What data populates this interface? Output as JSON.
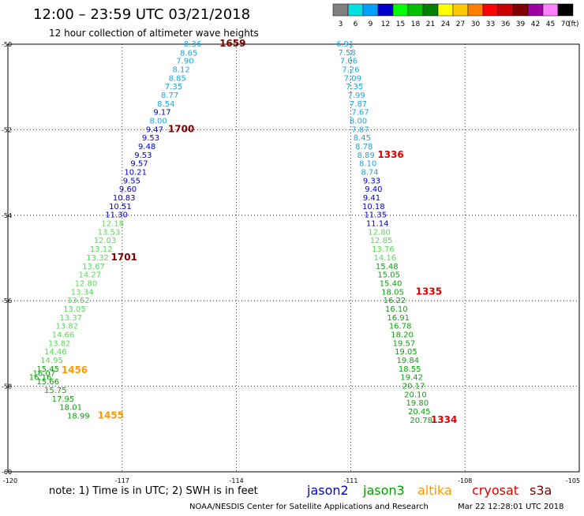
{
  "title": "12:00 – 23:59 UTC 03/21/2018",
  "subtitle": "12 hour collection of altimeter wave heights",
  "legend": {
    "labels": [
      "3",
      "6",
      "9",
      "12",
      "15",
      "18",
      "21",
      "24",
      "27",
      "30",
      "33",
      "36",
      "39",
      "42",
      "45",
      "70"
    ],
    "unit": "(ft)",
    "colors": [
      "#808080",
      "#00e0e0",
      "#00a0ff",
      "#0000c8",
      "#00ff00",
      "#00c000",
      "#008000",
      "#ffff00",
      "#ffc800",
      "#ff8000",
      "#ff0000",
      "#c80000",
      "#800000",
      "#a000a0",
      "#ff80ff",
      "#000000"
    ]
  },
  "axes": {
    "y_labels": [
      "-50",
      "-52",
      "-54",
      "-56",
      "-58",
      "-60"
    ],
    "x_labels": [
      "-120",
      "-117",
      "-114",
      "-111",
      "-108",
      "-105"
    ]
  },
  "tracks": [
    {
      "points": [
        {
          "v": "8.36",
          "c": "#1aa8e0",
          "lon": -115.15,
          "lat": -49.98
        },
        {
          "v": "8.65",
          "c": "#1aa8e0",
          "lon": -115.25,
          "lat": -50.19
        },
        {
          "v": "7.90",
          "c": "#1aa8e0",
          "lon": -115.35,
          "lat": -50.38
        },
        {
          "v": "8.12",
          "c": "#1aa8e0",
          "lon": -115.45,
          "lat": -50.58
        },
        {
          "v": "8.85",
          "c": "#1aa8e0",
          "lon": -115.55,
          "lat": -50.78
        },
        {
          "v": "7.35",
          "c": "#1aa8e0",
          "lon": -115.65,
          "lat": -50.98
        },
        {
          "v": "8.77",
          "c": "#1aa8e0",
          "lon": -115.75,
          "lat": -51.18
        },
        {
          "v": "8.54",
          "c": "#1aa8e0",
          "lon": -115.85,
          "lat": -51.38
        },
        {
          "v": "9.17",
          "c": "#0000c8",
          "lon": -115.95,
          "lat": -51.58
        },
        {
          "v": "8.00",
          "c": "#1aa8e0",
          "lon": -116.05,
          "lat": -51.78
        },
        {
          "v": "9.47",
          "c": "#0000c8",
          "lon": -116.15,
          "lat": -51.98
        },
        {
          "v": "9.53",
          "c": "#0000c8",
          "lon": -116.25,
          "lat": -52.18
        },
        {
          "v": "9.48",
          "c": "#0000c8",
          "lon": -116.35,
          "lat": -52.38
        },
        {
          "v": "9.53",
          "c": "#0000c8",
          "lon": -116.45,
          "lat": -52.58
        },
        {
          "v": "9.57",
          "c": "#0000c8",
          "lon": -116.55,
          "lat": -52.78
        },
        {
          "v": "10.21",
          "c": "#0000c8",
          "lon": -116.65,
          "lat": -52.98
        },
        {
          "v": "9.55",
          "c": "#0000c8",
          "lon": -116.75,
          "lat": -53.18
        },
        {
          "v": "9.60",
          "c": "#0000c8",
          "lon": -116.85,
          "lat": -53.38
        },
        {
          "v": "10.83",
          "c": "#0000c8",
          "lon": -116.95,
          "lat": -53.58
        },
        {
          "v": "10.51",
          "c": "#0000c8",
          "lon": -117.05,
          "lat": -53.78
        },
        {
          "v": "11.30",
          "c": "#0000c8",
          "lon": -117.15,
          "lat": -53.98
        },
        {
          "v": "12.18",
          "c": "#55dd55",
          "lon": -117.25,
          "lat": -54.18
        },
        {
          "v": "13.53",
          "c": "#55dd55",
          "lon": -117.35,
          "lat": -54.38
        },
        {
          "v": "12.03",
          "c": "#55dd55",
          "lon": -117.45,
          "lat": -54.58
        },
        {
          "v": "13.12",
          "c": "#55dd55",
          "lon": -117.55,
          "lat": -54.78
        },
        {
          "v": "13.32",
          "c": "#55dd55",
          "lon": -117.65,
          "lat": -54.98
        },
        {
          "v": "13.67",
          "c": "#55dd55",
          "lon": -117.75,
          "lat": -55.18
        },
        {
          "v": "14.27",
          "c": "#55dd55",
          "lon": -117.85,
          "lat": -55.38
        },
        {
          "v": "12.80",
          "c": "#55dd55",
          "lon": -117.95,
          "lat": -55.58
        },
        {
          "v": "13.34",
          "c": "#55dd55",
          "lon": -118.05,
          "lat": -55.78
        },
        {
          "v": "13.52",
          "c": "#55dd55",
          "lon": -118.15,
          "lat": -55.98
        },
        {
          "v": "13.05",
          "c": "#55dd55",
          "lon": -118.25,
          "lat": -56.18
        },
        {
          "v": "13.37",
          "c": "#55dd55",
          "lon": -118.35,
          "lat": -56.38
        },
        {
          "v": "13.82",
          "c": "#55dd55",
          "lon": -118.45,
          "lat": -56.58
        },
        {
          "v": "14.66",
          "c": "#55dd55",
          "lon": -118.55,
          "lat": -56.78
        },
        {
          "v": "13.82",
          "c": "#55dd55",
          "lon": -118.65,
          "lat": -56.98
        },
        {
          "v": "14.46",
          "c": "#55dd55",
          "lon": -118.75,
          "lat": -57.18
        },
        {
          "v": "14.95",
          "c": "#55dd55",
          "lon": -118.85,
          "lat": -57.38
        },
        {
          "v": "15.45",
          "c": "#10a010",
          "lon": -118.95,
          "lat": -57.58
        },
        {
          "v": "16.07",
          "c": "#10a010",
          "lon": -119.05,
          "lat": -57.68
        },
        {
          "v": "16.16",
          "c": "#10a010",
          "lon": -119.15,
          "lat": -57.78
        },
        {
          "v": "15.66",
          "c": "#10a010",
          "lon": -118.95,
          "lat": -57.88
        },
        {
          "v": "15.75",
          "c": "#10a010",
          "lon": -118.75,
          "lat": -58.08
        },
        {
          "v": "17.95",
          "c": "#10a010",
          "lon": -118.55,
          "lat": -58.28
        },
        {
          "v": "18.01",
          "c": "#10a010",
          "lon": -118.35,
          "lat": -58.48
        },
        {
          "v": "18.99",
          "c": "#10a010",
          "lon": -118.15,
          "lat": -58.68
        }
      ],
      "times": [
        {
          "t": "1659",
          "c": "#800000",
          "lon": -114.1,
          "lat": -49.98
        },
        {
          "t": "1700",
          "c": "#800000",
          "lon": -115.45,
          "lat": -51.98
        },
        {
          "t": "1701",
          "c": "#800000",
          "lon": -116.95,
          "lat": -54.98
        },
        {
          "t": "1456",
          "c": "#ff9900",
          "lon": -118.25,
          "lat": -57.62
        },
        {
          "t": "1455",
          "c": "#ff9900",
          "lon": -117.3,
          "lat": -58.68
        }
      ]
    },
    {
      "points": [
        {
          "v": "6.91",
          "c": "#1aa8e0",
          "lon": -111.15,
          "lat": -49.98
        },
        {
          "v": "7.58",
          "c": "#1aa8e0",
          "lon": -111.1,
          "lat": -50.18
        },
        {
          "v": "7.06",
          "c": "#1aa8e0",
          "lon": -111.05,
          "lat": -50.38
        },
        {
          "v": "7.26",
          "c": "#1aa8e0",
          "lon": -111.0,
          "lat": -50.58
        },
        {
          "v": "7.09",
          "c": "#1aa8e0",
          "lon": -110.95,
          "lat": -50.78
        },
        {
          "v": "7.35",
          "c": "#1aa8e0",
          "lon": -110.9,
          "lat": -50.98
        },
        {
          "v": "7.99",
          "c": "#1aa8e0",
          "lon": -110.85,
          "lat": -51.18
        },
        {
          "v": "7.87",
          "c": "#1aa8e0",
          "lon": -110.8,
          "lat": -51.38
        },
        {
          "v": "7.67",
          "c": "#1aa8e0",
          "lon": -110.75,
          "lat": -51.58
        },
        {
          "v": "8.00",
          "c": "#1aa8e0",
          "lon": -110.8,
          "lat": -51.78
        },
        {
          "v": "7.87",
          "c": "#1aa8e0",
          "lon": -110.75,
          "lat": -51.98
        },
        {
          "v": "8.45",
          "c": "#1aa8e0",
          "lon": -110.7,
          "lat": -52.18
        },
        {
          "v": "8.78",
          "c": "#1aa8e0",
          "lon": -110.65,
          "lat": -52.38
        },
        {
          "v": "8.89",
          "c": "#1aa8e0",
          "lon": -110.6,
          "lat": -52.58
        },
        {
          "v": "8.10",
          "c": "#1aa8e0",
          "lon": -110.55,
          "lat": -52.78
        },
        {
          "v": "8.74",
          "c": "#1aa8e0",
          "lon": -110.5,
          "lat": -52.98
        },
        {
          "v": "9.33",
          "c": "#0000c8",
          "lon": -110.45,
          "lat": -53.18
        },
        {
          "v": "9.40",
          "c": "#0000c8",
          "lon": -110.4,
          "lat": -53.38
        },
        {
          "v": "9.41",
          "c": "#0000c8",
          "lon": -110.45,
          "lat": -53.58
        },
        {
          "v": "10.18",
          "c": "#0000c8",
          "lon": -110.4,
          "lat": -53.78
        },
        {
          "v": "11.35",
          "c": "#0000c8",
          "lon": -110.35,
          "lat": -53.98
        },
        {
          "v": "11.14",
          "c": "#0000c8",
          "lon": -110.3,
          "lat": -54.18
        },
        {
          "v": "12.80",
          "c": "#55dd55",
          "lon": -110.25,
          "lat": -54.38
        },
        {
          "v": "12.85",
          "c": "#55dd55",
          "lon": -110.2,
          "lat": -54.58
        },
        {
          "v": "13.76",
          "c": "#55dd55",
          "lon": -110.15,
          "lat": -54.78
        },
        {
          "v": "14.16",
          "c": "#55dd55",
          "lon": -110.1,
          "lat": -54.98
        },
        {
          "v": "15.48",
          "c": "#10a010",
          "lon": -110.05,
          "lat": -55.18
        },
        {
          "v": "15.05",
          "c": "#10a010",
          "lon": -110.0,
          "lat": -55.38
        },
        {
          "v": "15.40",
          "c": "#10a010",
          "lon": -109.95,
          "lat": -55.58
        },
        {
          "v": "18.05",
          "c": "#10a010",
          "lon": -109.9,
          "lat": -55.78
        },
        {
          "v": "16.22",
          "c": "#10a010",
          "lon": -109.85,
          "lat": -55.98
        },
        {
          "v": "16.10",
          "c": "#10a010",
          "lon": -109.8,
          "lat": -56.18
        },
        {
          "v": "16.91",
          "c": "#10a010",
          "lon": -109.75,
          "lat": -56.38
        },
        {
          "v": "16.78",
          "c": "#10a010",
          "lon": -109.7,
          "lat": -56.58
        },
        {
          "v": "18.20",
          "c": "#10a010",
          "lon": -109.65,
          "lat": -56.78
        },
        {
          "v": "19.57",
          "c": "#10a010",
          "lon": -109.6,
          "lat": -56.98
        },
        {
          "v": "19.05",
          "c": "#10a010",
          "lon": -109.55,
          "lat": -57.18
        },
        {
          "v": "19.84",
          "c": "#10a010",
          "lon": -109.5,
          "lat": -57.38
        },
        {
          "v": "18.55",
          "c": "#10a010",
          "lon": -109.45,
          "lat": -57.58
        },
        {
          "v": "19.42",
          "c": "#10a010",
          "lon": -109.4,
          "lat": -57.78
        },
        {
          "v": "20.17",
          "c": "#10a010",
          "lon": -109.35,
          "lat": -57.98
        },
        {
          "v": "20.10",
          "c": "#10a010",
          "lon": -109.3,
          "lat": -58.18
        },
        {
          "v": "19.80",
          "c": "#10a010",
          "lon": -109.25,
          "lat": -58.38
        },
        {
          "v": "20.45",
          "c": "#10a010",
          "lon": -109.2,
          "lat": -58.58
        },
        {
          "v": "20.78",
          "c": "#10a010",
          "lon": -109.15,
          "lat": -58.78
        }
      ],
      "times": [
        {
          "t": "1336",
          "c": "#dd0000",
          "lon": -109.95,
          "lat": -52.58
        },
        {
          "t": "1335",
          "c": "#dd0000",
          "lon": -108.95,
          "lat": -55.78
        },
        {
          "t": "1334",
          "c": "#dd0000",
          "lon": -108.55,
          "lat": -58.78
        }
      ]
    }
  ],
  "note": "note:  1) Time is in UTC;  2) SWH is in feet",
  "satellites": [
    {
      "name": "jason2",
      "color": "#0000dd"
    },
    {
      "name": "jason3",
      "color": "#00a000"
    },
    {
      "name": "altika",
      "color": "#ff9900"
    },
    {
      "name": "cryosat",
      "color": "#dd0000"
    },
    {
      "name": "s3a",
      "color": "#800000"
    }
  ],
  "credit": "NOAA/NESDIS Center for Satellite Applications and Research",
  "timestamp": "Mar 22 12:28:01 UTC 2018"
}
